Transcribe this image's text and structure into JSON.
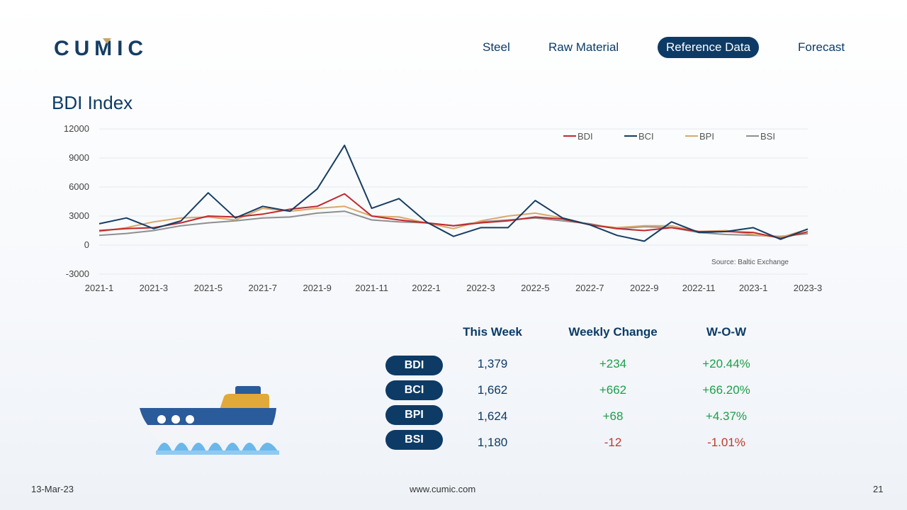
{
  "brand": {
    "logo_text": "CUMIC"
  },
  "nav": {
    "items": [
      "Steel",
      "Raw Material",
      "Reference Data",
      "Forecast"
    ],
    "active": "Reference Data"
  },
  "page_title": "BDI Index",
  "colors": {
    "primary": "#0d3b66",
    "BDI": "#c0282d",
    "BCI": "#163d63",
    "BPI": "#d8a868",
    "BSI": "#8f8f8f",
    "positive": "#1e9e4a",
    "negative": "#c0392b"
  },
  "chart_data": {
    "type": "line",
    "title": "",
    "xlabel": "",
    "ylabel": "",
    "ylim": [
      -3000,
      12000
    ],
    "yticks": [
      12000,
      9000,
      6000,
      3000,
      0,
      -3000
    ],
    "x_tick_labels": [
      "2021-1",
      "2021-3",
      "2021-5",
      "2021-7",
      "2021-9",
      "2021-11",
      "2022-1",
      "2022-3",
      "2022-5",
      "2022-7",
      "2022-9",
      "2022-11",
      "2023-1",
      "2023-3"
    ],
    "x": [
      "2021-1",
      "2021-2",
      "2021-3",
      "2021-4",
      "2021-5",
      "2021-6",
      "2021-7",
      "2021-8",
      "2021-9",
      "2021-10",
      "2021-11",
      "2021-12",
      "2022-1",
      "2022-2",
      "2022-3",
      "2022-4",
      "2022-5",
      "2022-6",
      "2022-7",
      "2022-8",
      "2022-9",
      "2022-10",
      "2022-11",
      "2022-12",
      "2023-1",
      "2023-2",
      "2023-3"
    ],
    "series": [
      {
        "name": "BDI",
        "values": [
          1500,
          1700,
          1800,
          2300,
          3000,
          2900,
          3200,
          3700,
          4000,
          5300,
          3000,
          2600,
          2300,
          2000,
          2300,
          2500,
          2900,
          2700,
          2100,
          1700,
          1500,
          1800,
          1400,
          1400,
          1300,
          700,
          1379
        ]
      },
      {
        "name": "BCI",
        "values": [
          2200,
          2800,
          1700,
          2500,
          5400,
          2800,
          4000,
          3500,
          5800,
          10300,
          3800,
          4800,
          2400,
          900,
          1800,
          1800,
          4600,
          2800,
          2100,
          1000,
          400,
          2400,
          1300,
          1400,
          1800,
          600,
          1662
        ]
      },
      {
        "name": "BPI",
        "values": [
          1400,
          1800,
          2400,
          2800,
          2900,
          2600,
          3800,
          3500,
          3800,
          4000,
          3000,
          2900,
          2300,
          1700,
          2500,
          3000,
          3300,
          2800,
          2100,
          1800,
          2000,
          2000,
          1400,
          1500,
          1100,
          800,
          1624
        ]
      },
      {
        "name": "BSI",
        "values": [
          1000,
          1200,
          1500,
          2000,
          2300,
          2500,
          2800,
          2900,
          3300,
          3500,
          2600,
          2400,
          2300,
          2000,
          2400,
          2600,
          2800,
          2500,
          2200,
          1700,
          1900,
          1800,
          1300,
          1100,
          1000,
          900,
          1180
        ]
      }
    ],
    "legend_position": "top-right",
    "annotation": "Source: Baltic Exchange",
    "grid": true
  },
  "table": {
    "headers": [
      "This Week",
      "Weekly Change",
      "W-O-W"
    ],
    "rows": [
      {
        "index": "BDI",
        "this_week": "1,379",
        "change": "+234",
        "wow": "+20.44%",
        "dir": "pos"
      },
      {
        "index": "BCI",
        "this_week": "1,662",
        "change": "+662",
        "wow": "+66.20%",
        "dir": "pos"
      },
      {
        "index": "BPI",
        "this_week": "1,624",
        "change": "+68",
        "wow": "+4.37%",
        "dir": "pos"
      },
      {
        "index": "BSI",
        "this_week": "1,180",
        "change": "-12",
        "wow": "-1.01%",
        "dir": "neg"
      }
    ]
  },
  "footer": {
    "date": "13-Mar-23",
    "website": "www.cumic.com",
    "page_number": "21"
  },
  "icons": {
    "ship": "cargo-ship-icon"
  }
}
